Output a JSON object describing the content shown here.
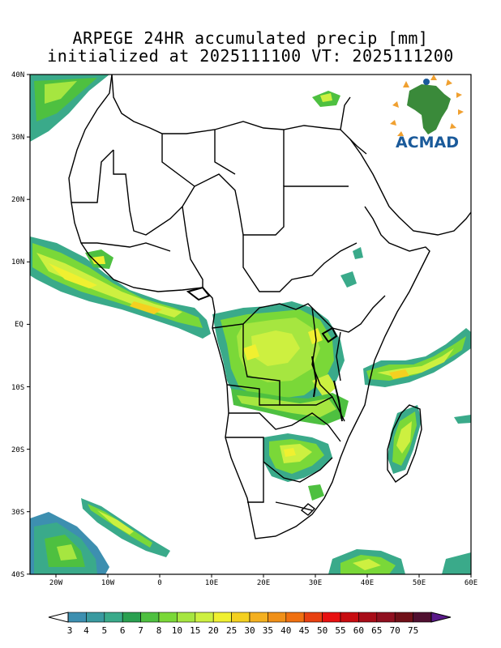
{
  "title": {
    "line1": "ARPEGE 24HR accumulated precip [mm]",
    "line2": "initialized at 2025111100 VT: 2025111200"
  },
  "logo": {
    "text": "ACMAD",
    "color": "#1a5a9a",
    "accent": "#f0a030"
  },
  "axes": {
    "lat_labels": [
      "40N",
      "30N",
      "20N",
      "10N",
      "EQ",
      "10S",
      "20S",
      "30S",
      "40S"
    ],
    "lon_labels": [
      "20W",
      "10W",
      "0",
      "10E",
      "20E",
      "30E",
      "40E",
      "50E",
      "60E"
    ],
    "lat_range": [
      -40,
      40
    ],
    "lon_range": [
      -25,
      60
    ]
  },
  "colorbar": {
    "labels": [
      "3",
      "4",
      "5",
      "6",
      "7",
      "8",
      "10",
      "15",
      "20",
      "25",
      "30",
      "35",
      "40",
      "45",
      "50",
      "55",
      "60",
      "65",
      "70",
      "75"
    ],
    "colors": [
      "#3d8fb0",
      "#3a9aa0",
      "#3aaa8a",
      "#2aa050",
      "#4ec040",
      "#7ad838",
      "#a6e640",
      "#cdf040",
      "#f0f030",
      "#f4d020",
      "#f4b020",
      "#f09018",
      "#f07010",
      "#e84010",
      "#e81010",
      "#c80c10",
      "#a80c18",
      "#901020",
      "#701018",
      "#501030"
    ],
    "under_color": "#ffffff",
    "over_color": "#5a1a8a"
  }
}
